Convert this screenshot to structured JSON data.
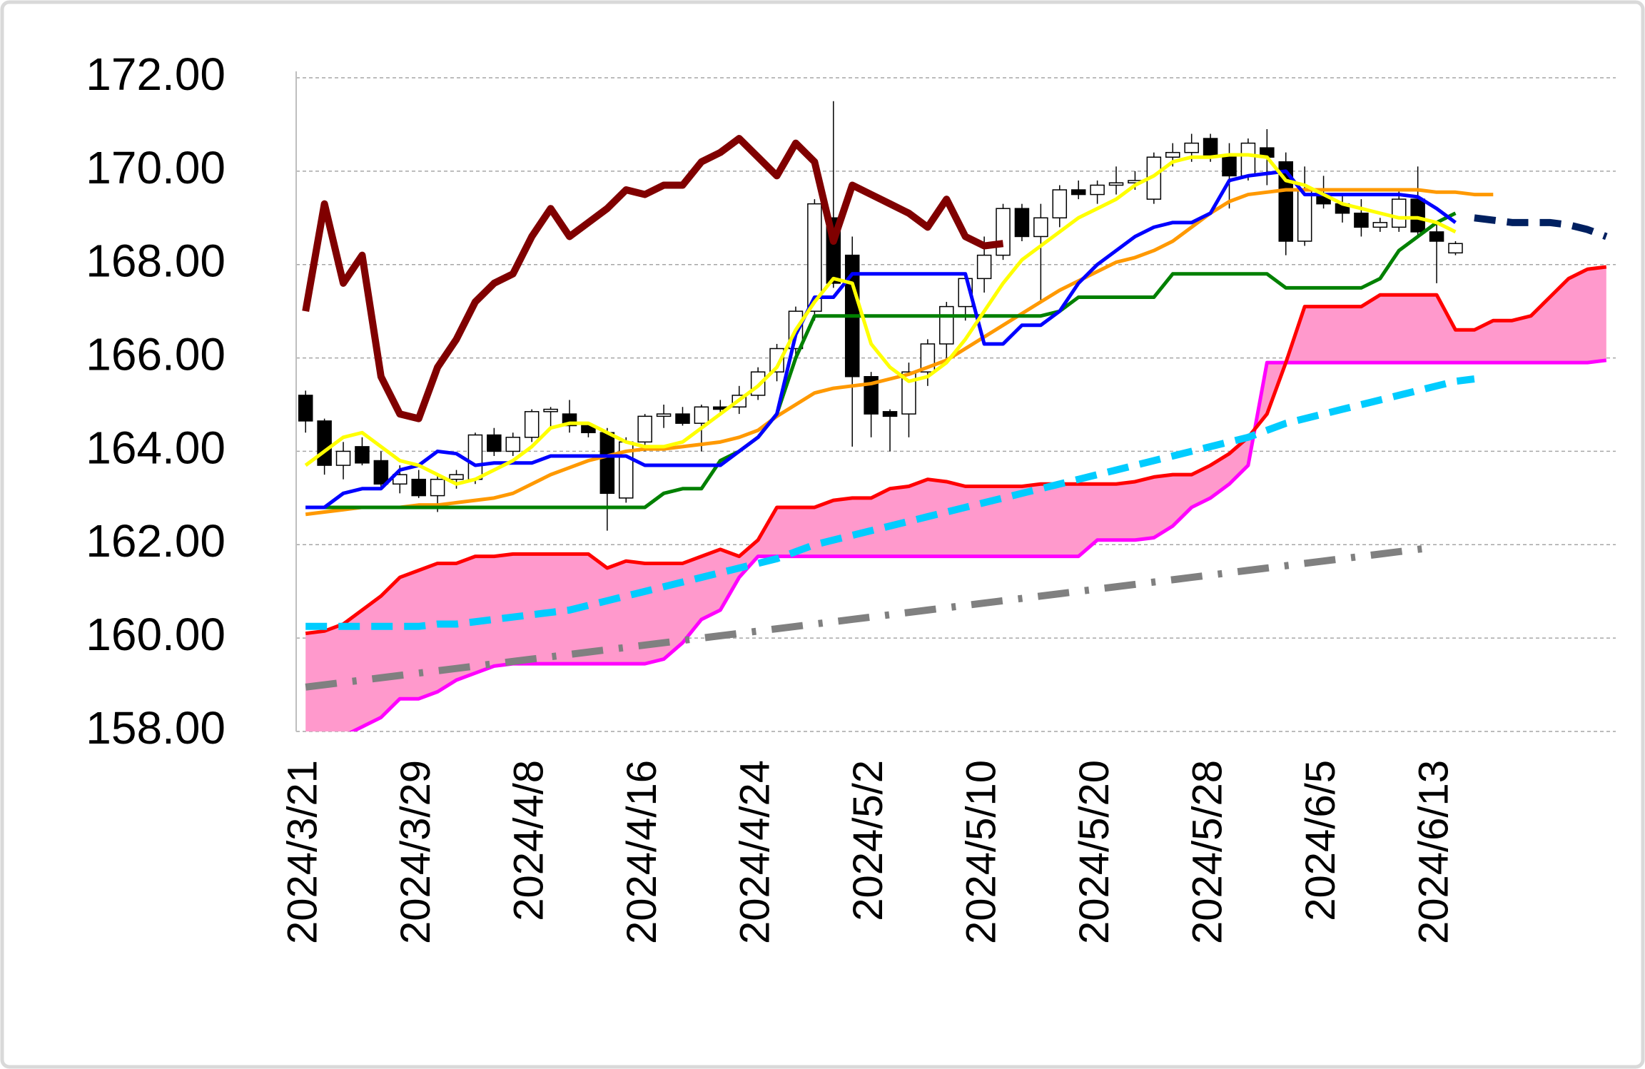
{
  "chart_data": {
    "type": "candlestick",
    "categories": [
      "2024/3/21",
      null,
      null,
      null,
      null,
      null,
      "2024/3/29",
      null,
      null,
      null,
      null,
      null,
      "2024/4/8",
      null,
      null,
      null,
      null,
      null,
      "2024/4/16",
      null,
      null,
      null,
      null,
      null,
      "2024/4/24",
      null,
      null,
      null,
      null,
      null,
      "2024/5/2",
      null,
      null,
      null,
      null,
      null,
      "2024/5/10",
      null,
      null,
      null,
      null,
      null,
      "2024/5/20",
      null,
      null,
      null,
      null,
      null,
      "2024/5/28",
      null,
      null,
      null,
      null,
      null,
      "2024/6/5",
      null,
      null,
      null,
      null,
      null,
      "2024/6/13",
      null,
      null,
      null,
      null,
      null,
      null,
      null,
      null,
      null
    ],
    "ylim": [
      158,
      172
    ],
    "yticks": [
      {
        "value": 158,
        "label": "158.00"
      },
      {
        "value": 160,
        "label": "160.00"
      },
      {
        "value": 162,
        "label": "162.00"
      },
      {
        "value": 164,
        "label": "164.00"
      },
      {
        "value": 166,
        "label": "166.00"
      },
      {
        "value": 168,
        "label": "168.00"
      },
      {
        "value": 170,
        "label": "170.00"
      },
      {
        "value": 172,
        "label": "172.00"
      }
    ],
    "grid": true,
    "cloud": {
      "color": "#ff99cc",
      "span_a": {
        "color": "#ff0000",
        "values": [
          160.1,
          160.15,
          160.3,
          160.6,
          160.9,
          161.3,
          161.45,
          161.6,
          161.6,
          161.75,
          161.75,
          161.8,
          161.8,
          161.8,
          161.8,
          161.8,
          161.5,
          161.65,
          161.6,
          161.6,
          161.6,
          161.75,
          161.9,
          161.75,
          162.1,
          162.8,
          162.8,
          162.8,
          162.95,
          163.0,
          163.0,
          163.2,
          163.25,
          163.4,
          163.35,
          163.25,
          163.25,
          163.25,
          163.25,
          163.3,
          163.3,
          163.3,
          163.3,
          163.3,
          163.35,
          163.45,
          163.5,
          163.5,
          163.7,
          163.95,
          164.3,
          164.8,
          165.9,
          167.1,
          167.1,
          167.1,
          167.1,
          167.35,
          167.35,
          167.35,
          167.35,
          166.6,
          166.6,
          166.8,
          166.8,
          166.9,
          167.3,
          167.7,
          167.9,
          167.95
        ]
      },
      "span_b": {
        "color": "#ff00ff",
        "values": [
          157.3,
          157.6,
          157.9,
          158.1,
          158.3,
          158.7,
          158.7,
          158.85,
          159.1,
          159.25,
          159.4,
          159.45,
          159.45,
          159.45,
          159.45,
          159.45,
          159.45,
          159.45,
          159.45,
          159.55,
          159.9,
          160.4,
          160.6,
          161.3,
          161.75,
          161.75,
          161.75,
          161.75,
          161.75,
          161.75,
          161.75,
          161.75,
          161.75,
          161.75,
          161.75,
          161.75,
          161.75,
          161.75,
          161.75,
          161.75,
          161.75,
          161.75,
          162.1,
          162.1,
          162.1,
          162.15,
          162.4,
          162.8,
          163.0,
          163.3,
          163.7,
          165.9,
          165.9,
          165.9,
          165.9,
          165.9,
          165.9,
          165.9,
          165.9,
          165.9,
          165.9,
          165.9,
          165.9,
          165.9,
          165.9,
          165.9,
          165.9,
          165.9,
          165.9,
          165.95
        ]
      }
    },
    "background_lines": [
      {
        "color": "#808080",
        "dash": "dash-dot",
        "weight": "thick",
        "values": [
          158.95,
          159.0,
          159.05,
          159.1,
          159.15,
          159.2,
          159.25,
          159.3,
          159.35,
          159.4,
          159.45,
          159.5,
          159.55,
          159.6,
          159.65,
          159.7,
          159.75,
          159.8,
          159.85,
          159.9,
          159.95,
          160.0,
          160.05,
          160.1,
          160.15,
          160.2,
          160.25,
          160.3,
          160.35,
          160.4,
          160.45,
          160.5,
          160.55,
          160.6,
          160.65,
          160.7,
          160.75,
          160.8,
          160.85,
          160.9,
          160.95,
          161.0,
          161.05,
          161.1,
          161.15,
          161.2,
          161.25,
          161.3,
          161.35,
          161.4,
          161.45,
          161.5,
          161.55,
          161.6,
          161.65,
          161.7,
          161.75,
          161.8,
          161.85,
          161.9,
          161.95,
          null,
          null,
          null,
          null,
          null,
          null,
          null,
          null,
          null
        ]
      },
      {
        "color": "#00ccff",
        "dash": "dashed",
        "weight": "thick",
        "values": [
          160.25,
          160.25,
          160.25,
          160.25,
          160.25,
          160.25,
          160.25,
          160.3,
          160.3,
          160.35,
          160.4,
          160.45,
          160.5,
          160.55,
          160.6,
          160.7,
          160.8,
          160.9,
          161.0,
          161.1,
          161.2,
          161.3,
          161.4,
          161.5,
          161.6,
          161.7,
          161.85,
          162.0,
          162.1,
          162.2,
          162.3,
          162.4,
          162.5,
          162.6,
          162.7,
          162.8,
          162.9,
          163.0,
          163.1,
          163.2,
          163.3,
          163.4,
          163.5,
          163.6,
          163.7,
          163.8,
          163.9,
          164.0,
          164.1,
          164.2,
          164.3,
          164.45,
          164.6,
          164.7,
          164.8,
          164.9,
          165.0,
          165.1,
          165.2,
          165.3,
          165.4,
          165.5,
          165.55,
          null,
          null,
          null,
          null,
          null,
          null,
          null
        ]
      }
    ],
    "candles": {
      "up_color": "#ffffff",
      "down_color": "#000000",
      "open": [
        165.2,
        164.65,
        163.7,
        164.1,
        163.8,
        163.3,
        163.4,
        163.05,
        163.4,
        163.4,
        164.35,
        164.0,
        164.3,
        164.85,
        164.8,
        164.55,
        164.4,
        163.0,
        164.2,
        164.75,
        164.8,
        164.6,
        164.95,
        164.95,
        165.2,
        165.7,
        166.2,
        167.0,
        169.0,
        168.2,
        165.6,
        164.85,
        164.8,
        165.7,
        166.3,
        167.1,
        167.7,
        168.2,
        169.2,
        168.6,
        169.0,
        169.6,
        169.5,
        169.7,
        169.75,
        169.4,
        170.3,
        170.4,
        170.7,
        170.3,
        169.9,
        170.5,
        170.2,
        168.5,
        169.5,
        169.3,
        169.1,
        168.8,
        168.8,
        169.4,
        168.7,
        168.25,
        null,
        null,
        null,
        null,
        null,
        null,
        null,
        null
      ],
      "high": [
        165.3,
        164.7,
        164.2,
        164.3,
        164.0,
        163.7,
        163.6,
        163.5,
        163.6,
        164.4,
        164.5,
        164.4,
        164.9,
        164.95,
        165.1,
        164.6,
        164.5,
        164.3,
        164.8,
        165.0,
        164.95,
        165.0,
        165.1,
        165.4,
        165.8,
        166.3,
        167.1,
        169.4,
        171.5,
        168.6,
        165.7,
        164.9,
        165.9,
        166.4,
        167.2,
        167.8,
        168.6,
        169.3,
        169.3,
        169.3,
        169.7,
        169.8,
        169.8,
        170.1,
        170.0,
        170.4,
        170.6,
        170.8,
        170.8,
        170.6,
        170.7,
        170.9,
        170.4,
        170.1,
        169.9,
        169.5,
        169.4,
        169.0,
        169.6,
        170.1,
        168.9,
        168.5,
        null,
        null,
        null,
        null,
        null,
        null,
        null,
        null
      ],
      "low": [
        164.4,
        163.5,
        163.4,
        163.7,
        163.2,
        163.1,
        163.0,
        162.7,
        163.2,
        163.3,
        163.9,
        163.9,
        164.2,
        164.5,
        164.4,
        164.3,
        162.3,
        162.9,
        164.0,
        164.5,
        164.55,
        164.0,
        164.8,
        164.8,
        165.1,
        165.5,
        166.0,
        166.8,
        167.5,
        164.1,
        164.3,
        164.0,
        164.3,
        165.4,
        166.0,
        166.8,
        167.4,
        168.1,
        168.5,
        167.2,
        168.8,
        169.4,
        169.3,
        169.5,
        169.6,
        169.3,
        170.1,
        170.2,
        170.2,
        169.2,
        169.8,
        169.7,
        168.2,
        168.4,
        169.2,
        168.9,
        168.6,
        168.7,
        168.7,
        168.6,
        167.6,
        168.2,
        null,
        null,
        null,
        null,
        null,
        null,
        null,
        null
      ],
      "close": [
        164.65,
        163.7,
        164.0,
        163.75,
        163.3,
        163.5,
        163.05,
        163.4,
        163.5,
        164.35,
        164.0,
        164.3,
        164.85,
        164.9,
        164.55,
        164.4,
        163.1,
        164.2,
        164.75,
        164.8,
        164.6,
        164.95,
        164.9,
        165.2,
        165.7,
        166.2,
        167.0,
        169.3,
        167.6,
        165.6,
        164.8,
        164.75,
        165.7,
        166.3,
        167.1,
        167.7,
        168.2,
        169.2,
        168.6,
        169.0,
        169.6,
        169.5,
        169.7,
        169.75,
        169.8,
        170.3,
        170.4,
        170.6,
        170.3,
        169.9,
        170.6,
        170.3,
        168.5,
        169.6,
        169.3,
        169.1,
        168.8,
        168.9,
        169.4,
        168.7,
        168.5,
        168.45,
        null,
        null,
        null,
        null,
        null,
        null,
        null,
        null
      ]
    },
    "lines": [
      {
        "color": "#800000",
        "dash": "solid",
        "weight": "thick",
        "values": [
          167.0,
          169.3,
          167.6,
          168.2,
          165.6,
          164.8,
          164.7,
          165.8,
          166.4,
          167.2,
          167.6,
          167.8,
          168.6,
          169.2,
          168.6,
          168.9,
          169.2,
          169.6,
          169.5,
          169.7,
          169.7,
          170.2,
          170.4,
          170.7,
          170.3,
          169.9,
          170.6,
          170.2,
          168.5,
          169.7,
          169.5,
          169.3,
          169.1,
          168.8,
          169.4,
          168.6,
          168.4,
          168.45,
          null,
          null,
          null,
          null,
          null,
          null,
          null,
          null,
          null,
          null,
          null,
          null,
          null,
          null,
          null,
          null,
          null,
          null,
          null,
          null,
          null,
          null,
          null,
          null,
          null,
          null,
          null,
          null,
          null,
          null,
          null,
          null
        ]
      },
      {
        "color": "#ff9900",
        "dash": "solid",
        "weight": "normal",
        "values": [
          162.65,
          162.7,
          162.75,
          162.8,
          162.8,
          162.8,
          162.85,
          162.85,
          162.9,
          162.95,
          163.0,
          163.1,
          163.3,
          163.5,
          163.65,
          163.8,
          163.9,
          164.0,
          164.05,
          164.05,
          164.1,
          164.15,
          164.2,
          164.3,
          164.45,
          164.75,
          165.0,
          165.25,
          165.35,
          165.4,
          165.45,
          165.55,
          165.65,
          165.8,
          165.95,
          166.2,
          166.45,
          166.7,
          166.95,
          167.2,
          167.45,
          167.65,
          167.85,
          168.05,
          168.15,
          168.3,
          168.5,
          168.8,
          169.1,
          169.35,
          169.5,
          169.55,
          169.6,
          169.6,
          169.6,
          169.6,
          169.6,
          169.6,
          169.6,
          169.6,
          169.55,
          169.55,
          169.5,
          169.5,
          null,
          null,
          null,
          null,
          null,
          null
        ]
      },
      {
        "color": "#008000",
        "dash": "solid",
        "weight": "normal",
        "values": [
          162.8,
          162.8,
          162.8,
          162.8,
          162.8,
          162.8,
          162.8,
          162.8,
          162.8,
          162.8,
          162.8,
          162.8,
          162.8,
          162.8,
          162.8,
          162.8,
          162.8,
          162.8,
          162.8,
          163.1,
          163.2,
          163.2,
          163.8,
          164.0,
          164.3,
          164.8,
          166.0,
          166.9,
          166.9,
          166.9,
          166.9,
          166.9,
          166.9,
          166.9,
          166.9,
          166.9,
          166.9,
          166.9,
          166.9,
          166.9,
          167.0,
          167.3,
          167.3,
          167.3,
          167.3,
          167.3,
          167.8,
          167.8,
          167.8,
          167.8,
          167.8,
          167.8,
          167.5,
          167.5,
          167.5,
          167.5,
          167.5,
          167.7,
          168.3,
          168.6,
          168.9,
          169.1,
          null,
          null,
          null,
          null,
          null,
          null,
          null,
          null
        ]
      },
      {
        "color": "#0000ff",
        "dash": "solid",
        "weight": "normal",
        "values": [
          162.8,
          162.8,
          163.1,
          163.2,
          163.2,
          163.6,
          163.7,
          164.0,
          163.95,
          163.7,
          163.75,
          163.75,
          163.75,
          163.9,
          163.9,
          163.9,
          163.9,
          163.9,
          163.7,
          163.7,
          163.7,
          163.7,
          163.7,
          164.0,
          164.3,
          164.8,
          166.5,
          167.3,
          167.3,
          167.8,
          167.8,
          167.8,
          167.8,
          167.8,
          167.8,
          167.8,
          166.3,
          166.3,
          166.7,
          166.7,
          167.0,
          167.6,
          168.0,
          168.3,
          168.6,
          168.8,
          168.9,
          168.9,
          169.1,
          169.8,
          169.9,
          169.95,
          170.0,
          169.5,
          169.5,
          169.5,
          169.5,
          169.5,
          169.5,
          169.45,
          169.2,
          168.9,
          null,
          null,
          null,
          null,
          null,
          null,
          null,
          null
        ]
      },
      {
        "color": "#ffff00",
        "dash": "solid",
        "weight": "normal",
        "values": [
          163.7,
          164.0,
          164.3,
          164.4,
          164.1,
          163.8,
          163.7,
          163.5,
          163.3,
          163.4,
          163.6,
          163.8,
          164.1,
          164.5,
          164.6,
          164.6,
          164.4,
          164.2,
          164.1,
          164.1,
          164.2,
          164.5,
          164.8,
          165.1,
          165.4,
          165.8,
          166.6,
          167.2,
          167.7,
          167.6,
          166.3,
          165.8,
          165.5,
          165.6,
          165.9,
          166.4,
          167.0,
          167.6,
          168.1,
          168.4,
          168.7,
          169.0,
          169.2,
          169.4,
          169.7,
          169.9,
          170.2,
          170.3,
          170.3,
          170.35,
          170.35,
          170.3,
          169.8,
          169.7,
          169.5,
          169.3,
          169.2,
          169.1,
          169.0,
          169.0,
          168.9,
          168.7,
          null,
          null,
          null,
          null,
          null,
          null,
          null,
          null
        ]
      },
      {
        "color": "#002060",
        "dash": "dashed",
        "weight": "thick",
        "values": [
          null,
          null,
          null,
          null,
          null,
          null,
          null,
          null,
          null,
          null,
          null,
          null,
          null,
          null,
          null,
          null,
          null,
          null,
          null,
          null,
          null,
          null,
          null,
          null,
          null,
          null,
          null,
          null,
          null,
          null,
          null,
          null,
          null,
          null,
          null,
          null,
          null,
          null,
          null,
          null,
          null,
          null,
          null,
          null,
          null,
          null,
          null,
          null,
          null,
          null,
          null,
          null,
          null,
          null,
          null,
          null,
          null,
          null,
          null,
          null,
          null,
          null,
          169.0,
          168.95,
          168.9,
          168.9,
          168.9,
          168.85,
          168.75,
          168.6
        ]
      }
    ]
  }
}
